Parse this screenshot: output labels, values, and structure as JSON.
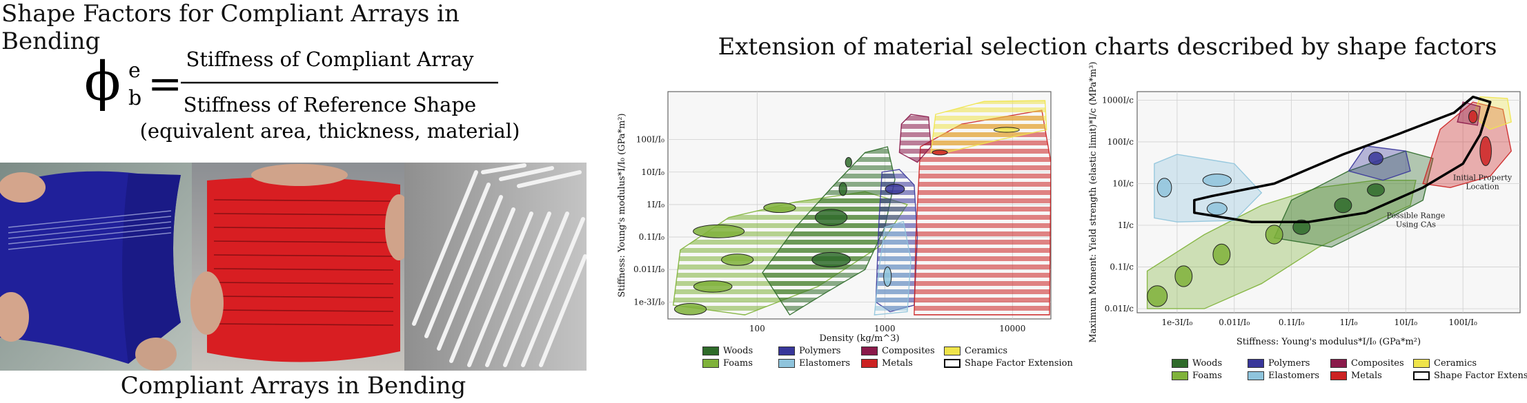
{
  "left_panel": {
    "title": "Shape Factors for Compliant Arrays in Bending",
    "formula": {
      "symbol": "ϕ",
      "superscript": "e",
      "subscript": "b",
      "equals": "=",
      "numerator": "Stiffness of Compliant Array",
      "denominator_line1": "Stiffness of Reference Shape",
      "denominator_line2": "(equivalent area, thickness, material)"
    },
    "photos": [
      "blue curved compliant array sheet",
      "red compliant array sheet",
      "white slotted compliant array"
    ],
    "caption": "Compliant Arrays in Bending"
  },
  "right_panel": {
    "title": "Extension of material selection charts described by shape factors"
  },
  "colors": {
    "woods": "#2f6b2a",
    "foams": "#7fb23a",
    "polymers": "#38369a",
    "elastomers": "#8fc4dc",
    "composites": "#8a1a4a",
    "metals": "#cc2222",
    "ceramics": "#efe44a"
  },
  "chart_data": [
    {
      "type": "scatter",
      "xlabel": "Density (kg/m^3)",
      "ylabel": "Stiffness: Young's modulus*I/I₀ (GPa*m²)",
      "x_scale": "log",
      "y_scale": "log",
      "x_ticks": [
        {
          "value": 100,
          "label": "100"
        },
        {
          "value": 1000,
          "label": "1000"
        },
        {
          "value": 10000,
          "label": "10000"
        }
      ],
      "y_ticks": [
        {
          "value": 0.001,
          "label": "1e-3I/I₀"
        },
        {
          "value": 0.01,
          "label": "0.01I/I₀"
        },
        {
          "value": 0.1,
          "label": "0.1I/I₀"
        },
        {
          "value": 1,
          "label": "1I/I₀"
        },
        {
          "value": 10,
          "label": "10I/I₀"
        },
        {
          "value": 100,
          "label": "100I/I₀"
        }
      ],
      "xlim": [
        20,
        20000
      ],
      "ylim": [
        0.0003,
        3000
      ],
      "regions": [
        {
          "family": "foams",
          "extension": true,
          "points": [
            [
              22,
              0.0008
            ],
            [
              25,
              0.04
            ],
            [
              60,
              0.4
            ],
            [
              200,
              1.2
            ],
            [
              700,
              2.5
            ],
            [
              1500,
              1
            ],
            [
              900,
              0.05
            ],
            [
              300,
              0.003
            ],
            [
              80,
              0.0004
            ]
          ]
        },
        {
          "family": "woods",
          "extension": true,
          "points": [
            [
              110,
              0.008
            ],
            [
              200,
              0.2
            ],
            [
              400,
              4
            ],
            [
              700,
              40
            ],
            [
              1050,
              60
            ],
            [
              1200,
              6
            ],
            [
              1000,
              0.2
            ],
            [
              700,
              0.01
            ],
            [
              350,
              0.002
            ],
            [
              180,
              0.0004
            ]
          ]
        },
        {
          "family": "polymers",
          "extension": true,
          "points": [
            [
              850,
              0.001
            ],
            [
              900,
              0.3
            ],
            [
              950,
              10
            ],
            [
              1300,
              12
            ],
            [
              1700,
              4
            ],
            [
              1800,
              0.1
            ],
            [
              1700,
              0.0008
            ],
            [
              1100,
              0.0005
            ]
          ]
        },
        {
          "family": "elastomers",
          "extension": true,
          "points": [
            [
              830,
              0.0004
            ],
            [
              900,
              0.01
            ],
            [
              1000,
              0.2
            ],
            [
              1400,
              0.3
            ],
            [
              1600,
              0.02
            ],
            [
              1500,
              0.0005
            ]
          ]
        },
        {
          "family": "metals",
          "extension": true,
          "points": [
            [
              1700,
              0.0004
            ],
            [
              1750,
              0.1
            ],
            [
              1900,
              60
            ],
            [
              4000,
              300
            ],
            [
              17000,
              800
            ],
            [
              20000,
              20
            ],
            [
              19500,
              0.0004
            ]
          ]
        },
        {
          "family": "composites",
          "extension": true,
          "points": [
            [
              1300,
              40
            ],
            [
              1350,
              300
            ],
            [
              1600,
              600
            ],
            [
              2200,
              500
            ],
            [
              2300,
              60
            ],
            [
              1800,
              20
            ]
          ]
        },
        {
          "family": "ceramics",
          "extension": true,
          "points": [
            [
              2300,
              40
            ],
            [
              2500,
              600
            ],
            [
              6000,
              1500
            ],
            [
              18000,
              1600
            ],
            [
              18500,
              200
            ],
            [
              8000,
              100
            ],
            [
              3000,
              40
            ]
          ]
        }
      ],
      "ellipses": [
        {
          "family": "foams",
          "x": 30,
          "y": 0.0006,
          "w": 0.25,
          "h": 0.35
        },
        {
          "family": "foams",
          "x": 45,
          "y": 0.003,
          "w": 0.3,
          "h": 0.35
        },
        {
          "family": "foams",
          "x": 70,
          "y": 0.02,
          "w": 0.25,
          "h": 0.35
        },
        {
          "family": "foams",
          "x": 50,
          "y": 0.15,
          "w": 0.4,
          "h": 0.4
        },
        {
          "family": "foams",
          "x": 150,
          "y": 0.8,
          "w": 0.25,
          "h": 0.3
        },
        {
          "family": "woods",
          "x": 380,
          "y": 0.02,
          "w": 0.3,
          "h": 0.45
        },
        {
          "family": "woods",
          "x": 380,
          "y": 0.4,
          "w": 0.25,
          "h": 0.5
        },
        {
          "family": "woods",
          "x": 470,
          "y": 3,
          "w": 0.06,
          "h": 0.4
        },
        {
          "family": "woods",
          "x": 520,
          "y": 20,
          "w": 0.05,
          "h": 0.3
        },
        {
          "family": "polymers",
          "x": 1200,
          "y": 3,
          "w": 0.15,
          "h": 0.3
        },
        {
          "family": "elastomers",
          "x": 1050,
          "y": 0.006,
          "w": 0.06,
          "h": 0.6
        },
        {
          "family": "metals",
          "x": 2700,
          "y": 40,
          "w": 0.12,
          "h": 0.15
        },
        {
          "family": "ceramics",
          "x": 9000,
          "y": 200,
          "w": 0.2,
          "h": 0.15
        }
      ]
    },
    {
      "type": "scatter",
      "xlabel": "Stiffness: Young's modulus*I/I₀ (GPa*m²)",
      "ylabel": "Maximum Moment: Yield strength (elastic limit)*I/c (MPa*m³)",
      "x_scale": "log",
      "y_scale": "log",
      "x_ticks": [
        {
          "value": 0.001,
          "label": "1e-3I/I₀"
        },
        {
          "value": 0.01,
          "label": "0.01I/I₀"
        },
        {
          "value": 0.1,
          "label": "0.1I/I₀"
        },
        {
          "value": 1,
          "label": "1I/I₀"
        },
        {
          "value": 10,
          "label": "10I/I₀"
        },
        {
          "value": 100,
          "label": "100I/I₀"
        }
      ],
      "y_ticks": [
        {
          "value": 0.01,
          "label": "0.01I/c"
        },
        {
          "value": 0.1,
          "label": "0.1I/c"
        },
        {
          "value": 1,
          "label": "1I/c"
        },
        {
          "value": 10,
          "label": "10I/c"
        },
        {
          "value": 100,
          "label": "100I/c"
        },
        {
          "value": 1000,
          "label": "1000I/c"
        }
      ],
      "xlim": [
        0.0002,
        1000
      ],
      "ylim": [
        0.008,
        1600
      ],
      "annotations": [
        {
          "text_lines": [
            "Possible Range",
            "Using CAs"
          ],
          "x": 15,
          "y": 1.5
        },
        {
          "text_lines": [
            "Initial Property",
            "Location"
          ],
          "x": 220,
          "y": 12
        }
      ],
      "regions": [
        {
          "family": "foams",
          "points": [
            [
              0.0003,
              0.01
            ],
            [
              0.0003,
              0.08
            ],
            [
              0.003,
              0.6
            ],
            [
              0.03,
              3
            ],
            [
              0.3,
              8
            ],
            [
              3,
              12
            ],
            [
              15,
              12
            ],
            [
              12,
              3
            ],
            [
              2,
              1
            ],
            [
              0.3,
              0.3
            ],
            [
              0.03,
              0.04
            ],
            [
              0.003,
              0.01
            ]
          ]
        },
        {
          "family": "woods",
          "points": [
            [
              0.05,
              0.5
            ],
            [
              0.1,
              4
            ],
            [
              1,
              20
            ],
            [
              10,
              60
            ],
            [
              30,
              40
            ],
            [
              20,
              4
            ],
            [
              3,
              1
            ],
            [
              0.5,
              0.3
            ]
          ]
        },
        {
          "family": "elastomers",
          "points": [
            [
              0.0004,
              1.5
            ],
            [
              0.0004,
              30
            ],
            [
              0.001,
              50
            ],
            [
              0.01,
              30
            ],
            [
              0.03,
              6
            ],
            [
              0.01,
              1.3
            ],
            [
              0.001,
              1.2
            ]
          ]
        },
        {
          "family": "polymers",
          "points": [
            [
              1,
              20
            ],
            [
              2,
              80
            ],
            [
              10,
              60
            ],
            [
              12,
              20
            ],
            [
              4,
              12
            ]
          ]
        },
        {
          "family": "metals",
          "points": [
            [
              20,
              10
            ],
            [
              40,
              200
            ],
            [
              150,
              900
            ],
            [
              500,
              600
            ],
            [
              700,
              60
            ],
            [
              300,
              15
            ],
            [
              60,
              8
            ]
          ]
        },
        {
          "family": "ceramics",
          "points": [
            [
              150,
              400
            ],
            [
              200,
              1200
            ],
            [
              600,
              1100
            ],
            [
              700,
              300
            ],
            [
              300,
              200
            ]
          ]
        },
        {
          "family": "composites",
          "points": [
            [
              80,
              300
            ],
            [
              100,
              900
            ],
            [
              200,
              700
            ],
            [
              180,
              250
            ]
          ]
        }
      ],
      "ellipses": [
        {
          "family": "foams",
          "x": 0.00045,
          "y": 0.02,
          "w": 0.35,
          "h": 0.5
        },
        {
          "family": "foams",
          "x": 0.0013,
          "y": 0.06,
          "w": 0.3,
          "h": 0.5
        },
        {
          "family": "foams",
          "x": 0.006,
          "y": 0.2,
          "w": 0.3,
          "h": 0.5
        },
        {
          "family": "foams",
          "x": 0.05,
          "y": 0.6,
          "w": 0.3,
          "h": 0.45
        },
        {
          "family": "woods",
          "x": 0.15,
          "y": 0.9,
          "w": 0.3,
          "h": 0.35
        },
        {
          "family": "woods",
          "x": 0.8,
          "y": 3,
          "w": 0.3,
          "h": 0.35
        },
        {
          "family": "woods",
          "x": 3,
          "y": 7,
          "w": 0.3,
          "h": 0.3
        },
        {
          "family": "elastomers",
          "x": 0.0006,
          "y": 8,
          "w": 0.25,
          "h": 0.45
        },
        {
          "family": "elastomers",
          "x": 0.005,
          "y": 12,
          "w": 0.5,
          "h": 0.3
        },
        {
          "family": "elastomers",
          "x": 0.005,
          "y": 2.5,
          "w": 0.35,
          "h": 0.3
        },
        {
          "family": "polymers",
          "x": 3,
          "y": 40,
          "w": 0.25,
          "h": 0.3
        },
        {
          "family": "metals",
          "x": 250,
          "y": 60,
          "w": 0.2,
          "h": 0.7
        },
        {
          "family": "metals",
          "x": 150,
          "y": 400,
          "w": 0.15,
          "h": 0.3
        }
      ],
      "shape_factor_extension": [
        [
          0.002,
          4
        ],
        [
          0.004,
          5
        ],
        [
          0.05,
          10
        ],
        [
          0.8,
          50
        ],
        [
          8,
          160
        ],
        [
          70,
          500
        ],
        [
          150,
          1200
        ],
        [
          300,
          900
        ],
        [
          200,
          150
        ],
        [
          100,
          30
        ],
        [
          20,
          8
        ],
        [
          2,
          2
        ],
        [
          0.2,
          1.2
        ],
        [
          0.02,
          1.2
        ],
        [
          0.002,
          2
        ]
      ]
    }
  ],
  "legend": [
    [
      {
        "label": "Woods",
        "color": "#2f6b2a"
      },
      {
        "label": "Polymers",
        "color": "#38369a"
      },
      {
        "label": "Composites",
        "color": "#8a1a4a"
      },
      {
        "label": "Ceramics",
        "color": "#efe44a"
      }
    ],
    [
      {
        "label": "Foams",
        "color": "#7fb23a"
      },
      {
        "label": "Elastomers",
        "color": "#8fc4dc"
      },
      {
        "label": "Metals",
        "color": "#cc2222"
      },
      {
        "label": "Shape Factor Extension",
        "color": "#ffffff",
        "outline": true
      }
    ]
  ]
}
